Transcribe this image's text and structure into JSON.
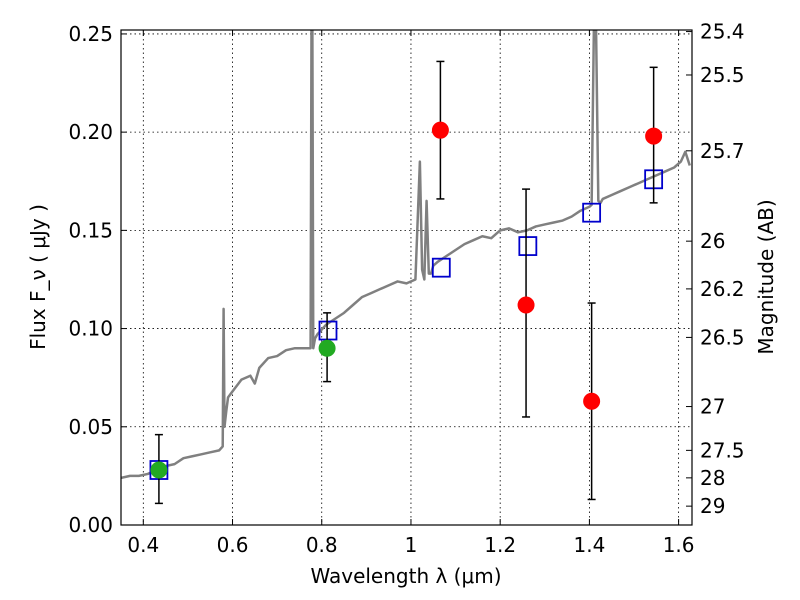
{
  "chart_data": {
    "type": "scatter",
    "xlabel": "Wavelength  λ (μm)",
    "ylabel": "Flux  F_ν  ( μJy )",
    "ylabel_right": "Magnitude (AB)",
    "xlim": [
      0.35,
      1.63
    ],
    "ylim": [
      0.0,
      0.252
    ],
    "grid": true,
    "x_ticks": [
      {
        "value": 0.4,
        "label": "0.4"
      },
      {
        "value": 0.6,
        "label": "0.6"
      },
      {
        "value": 0.8,
        "label": "0.8"
      },
      {
        "value": 1.0,
        "label": "1"
      },
      {
        "value": 1.2,
        "label": "1.2"
      },
      {
        "value": 1.4,
        "label": "1.4"
      },
      {
        "value": 1.6,
        "label": "1.6"
      }
    ],
    "y_ticks": [
      {
        "value": 0.0,
        "label": "0.00"
      },
      {
        "value": 0.05,
        "label": "0.05"
      },
      {
        "value": 0.1,
        "label": "0.10"
      },
      {
        "value": 0.15,
        "label": "0.15"
      },
      {
        "value": 0.2,
        "label": "0.20"
      },
      {
        "value": 0.25,
        "label": "0.25"
      }
    ],
    "y2_ticks": [
      {
        "flux": 0.2512,
        "label": "25.4"
      },
      {
        "flux": 0.2291,
        "label": "25.5"
      },
      {
        "flux": 0.1905,
        "label": "25.7"
      },
      {
        "flux": 0.1445,
        "label": "26"
      },
      {
        "flux": 0.1202,
        "label": "26.2"
      },
      {
        "flux": 0.0955,
        "label": "26.5"
      },
      {
        "flux": 0.0603,
        "label": "27"
      },
      {
        "flux": 0.038,
        "label": "27.5"
      },
      {
        "flux": 0.024,
        "label": "28"
      },
      {
        "flux": 0.0096,
        "label": "29"
      }
    ],
    "series": [
      {
        "kind": "spectrum",
        "color": "#808080",
        "x": [
          0.35,
          0.37,
          0.39,
          0.41,
          0.43,
          0.45,
          0.47,
          0.49,
          0.51,
          0.53,
          0.55,
          0.57,
          0.578,
          0.58,
          0.582,
          0.586,
          0.59,
          0.6,
          0.62,
          0.64,
          0.65,
          0.66,
          0.68,
          0.7,
          0.72,
          0.74,
          0.76,
          0.775,
          0.777,
          0.779,
          0.781,
          0.785,
          0.79,
          0.81,
          0.83,
          0.85,
          0.87,
          0.89,
          0.91,
          0.93,
          0.95,
          0.97,
          0.99,
          1.01,
          1.02,
          1.025,
          1.03,
          1.035,
          1.04,
          1.045,
          1.05,
          1.06,
          1.08,
          1.1,
          1.12,
          1.14,
          1.16,
          1.18,
          1.2,
          1.22,
          1.24,
          1.26,
          1.28,
          1.3,
          1.32,
          1.34,
          1.36,
          1.38,
          1.4,
          1.405,
          1.41,
          1.415,
          1.42,
          1.425,
          1.43,
          1.45,
          1.47,
          1.49,
          1.51,
          1.53,
          1.55,
          1.57,
          1.59,
          1.605,
          1.615,
          1.625
        ],
        "y": [
          0.024,
          0.025,
          0.025,
          0.026,
          0.028,
          0.03,
          0.031,
          0.034,
          0.035,
          0.036,
          0.037,
          0.038,
          0.04,
          0.11,
          0.05,
          0.058,
          0.065,
          0.068,
          0.074,
          0.076,
          0.072,
          0.08,
          0.085,
          0.086,
          0.089,
          0.09,
          0.09,
          0.09,
          0.252,
          0.252,
          0.09,
          0.095,
          0.097,
          0.102,
          0.105,
          0.108,
          0.112,
          0.116,
          0.118,
          0.12,
          0.122,
          0.124,
          0.123,
          0.125,
          0.185,
          0.13,
          0.125,
          0.165,
          0.128,
          0.128,
          0.132,
          0.134,
          0.137,
          0.14,
          0.143,
          0.145,
          0.147,
          0.146,
          0.15,
          0.151,
          0.149,
          0.15,
          0.152,
          0.153,
          0.154,
          0.155,
          0.157,
          0.16,
          0.162,
          0.163,
          0.252,
          0.252,
          0.165,
          0.164,
          0.166,
          0.168,
          0.17,
          0.172,
          0.174,
          0.176,
          0.178,
          0.18,
          0.182,
          0.185,
          0.19,
          0.183
        ]
      },
      {
        "kind": "open-square",
        "color": "#0000cc",
        "x": [
          0.435,
          0.814,
          1.068,
          1.262,
          1.405,
          1.544
        ],
        "y": [
          0.028,
          0.099,
          0.131,
          0.142,
          0.159,
          0.176
        ]
      },
      {
        "kind": "filled-circle",
        "color": "#22aa22",
        "x": [
          0.435,
          0.812
        ],
        "y": [
          0.028,
          0.09
        ],
        "y_err_low": [
          0.011,
          0.073
        ],
        "y_err_high": [
          0.046,
          0.108
        ]
      },
      {
        "kind": "filled-circle",
        "color": "#ff0000",
        "x": [
          1.066,
          1.258,
          1.405,
          1.544
        ],
        "y": [
          0.201,
          0.112,
          0.063,
          0.198
        ],
        "y_err_low": [
          0.166,
          0.055,
          0.013,
          0.164
        ],
        "y_err_high": [
          0.236,
          0.171,
          0.113,
          0.233
        ]
      }
    ]
  }
}
